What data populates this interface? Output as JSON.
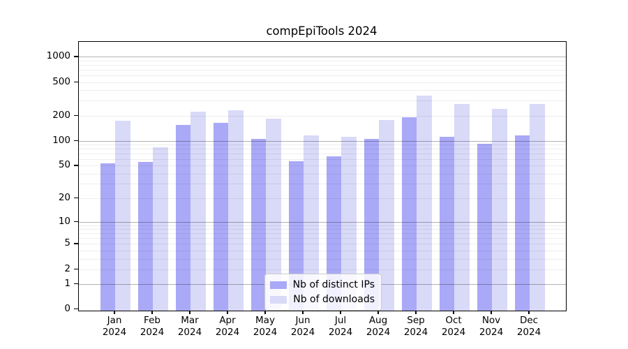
{
  "chart": {
    "title": "compEpiTools 2024"
  },
  "chart_data": {
    "type": "bar",
    "title": "compEpiTools 2024",
    "xlabel": "",
    "ylabel": "",
    "scale": "log10(1+x)",
    "grid": true,
    "legend_position": "lower center",
    "categories": [
      "Jan",
      "Feb",
      "Mar",
      "Apr",
      "May",
      "Jun",
      "Jul",
      "Aug",
      "Sep",
      "Oct",
      "Nov",
      "Dec"
    ],
    "category_year": "2024",
    "series": [
      {
        "name": "Nb of distinct IPs",
        "color": "#a9a9f7",
        "values": [
          53,
          55,
          155,
          162,
          106,
          57,
          65,
          104,
          192,
          112,
          91,
          115
        ]
      },
      {
        "name": "Nb of downloads",
        "color": "#d9d9f8",
        "values": [
          172,
          84,
          222,
          233,
          184,
          116,
          112,
          175,
          348,
          277,
          241,
          277
        ]
      }
    ],
    "y_ticks": [
      0,
      1,
      2,
      5,
      10,
      20,
      50,
      100,
      200,
      500,
      1000
    ],
    "ylim": [
      0,
      1500
    ]
  }
}
